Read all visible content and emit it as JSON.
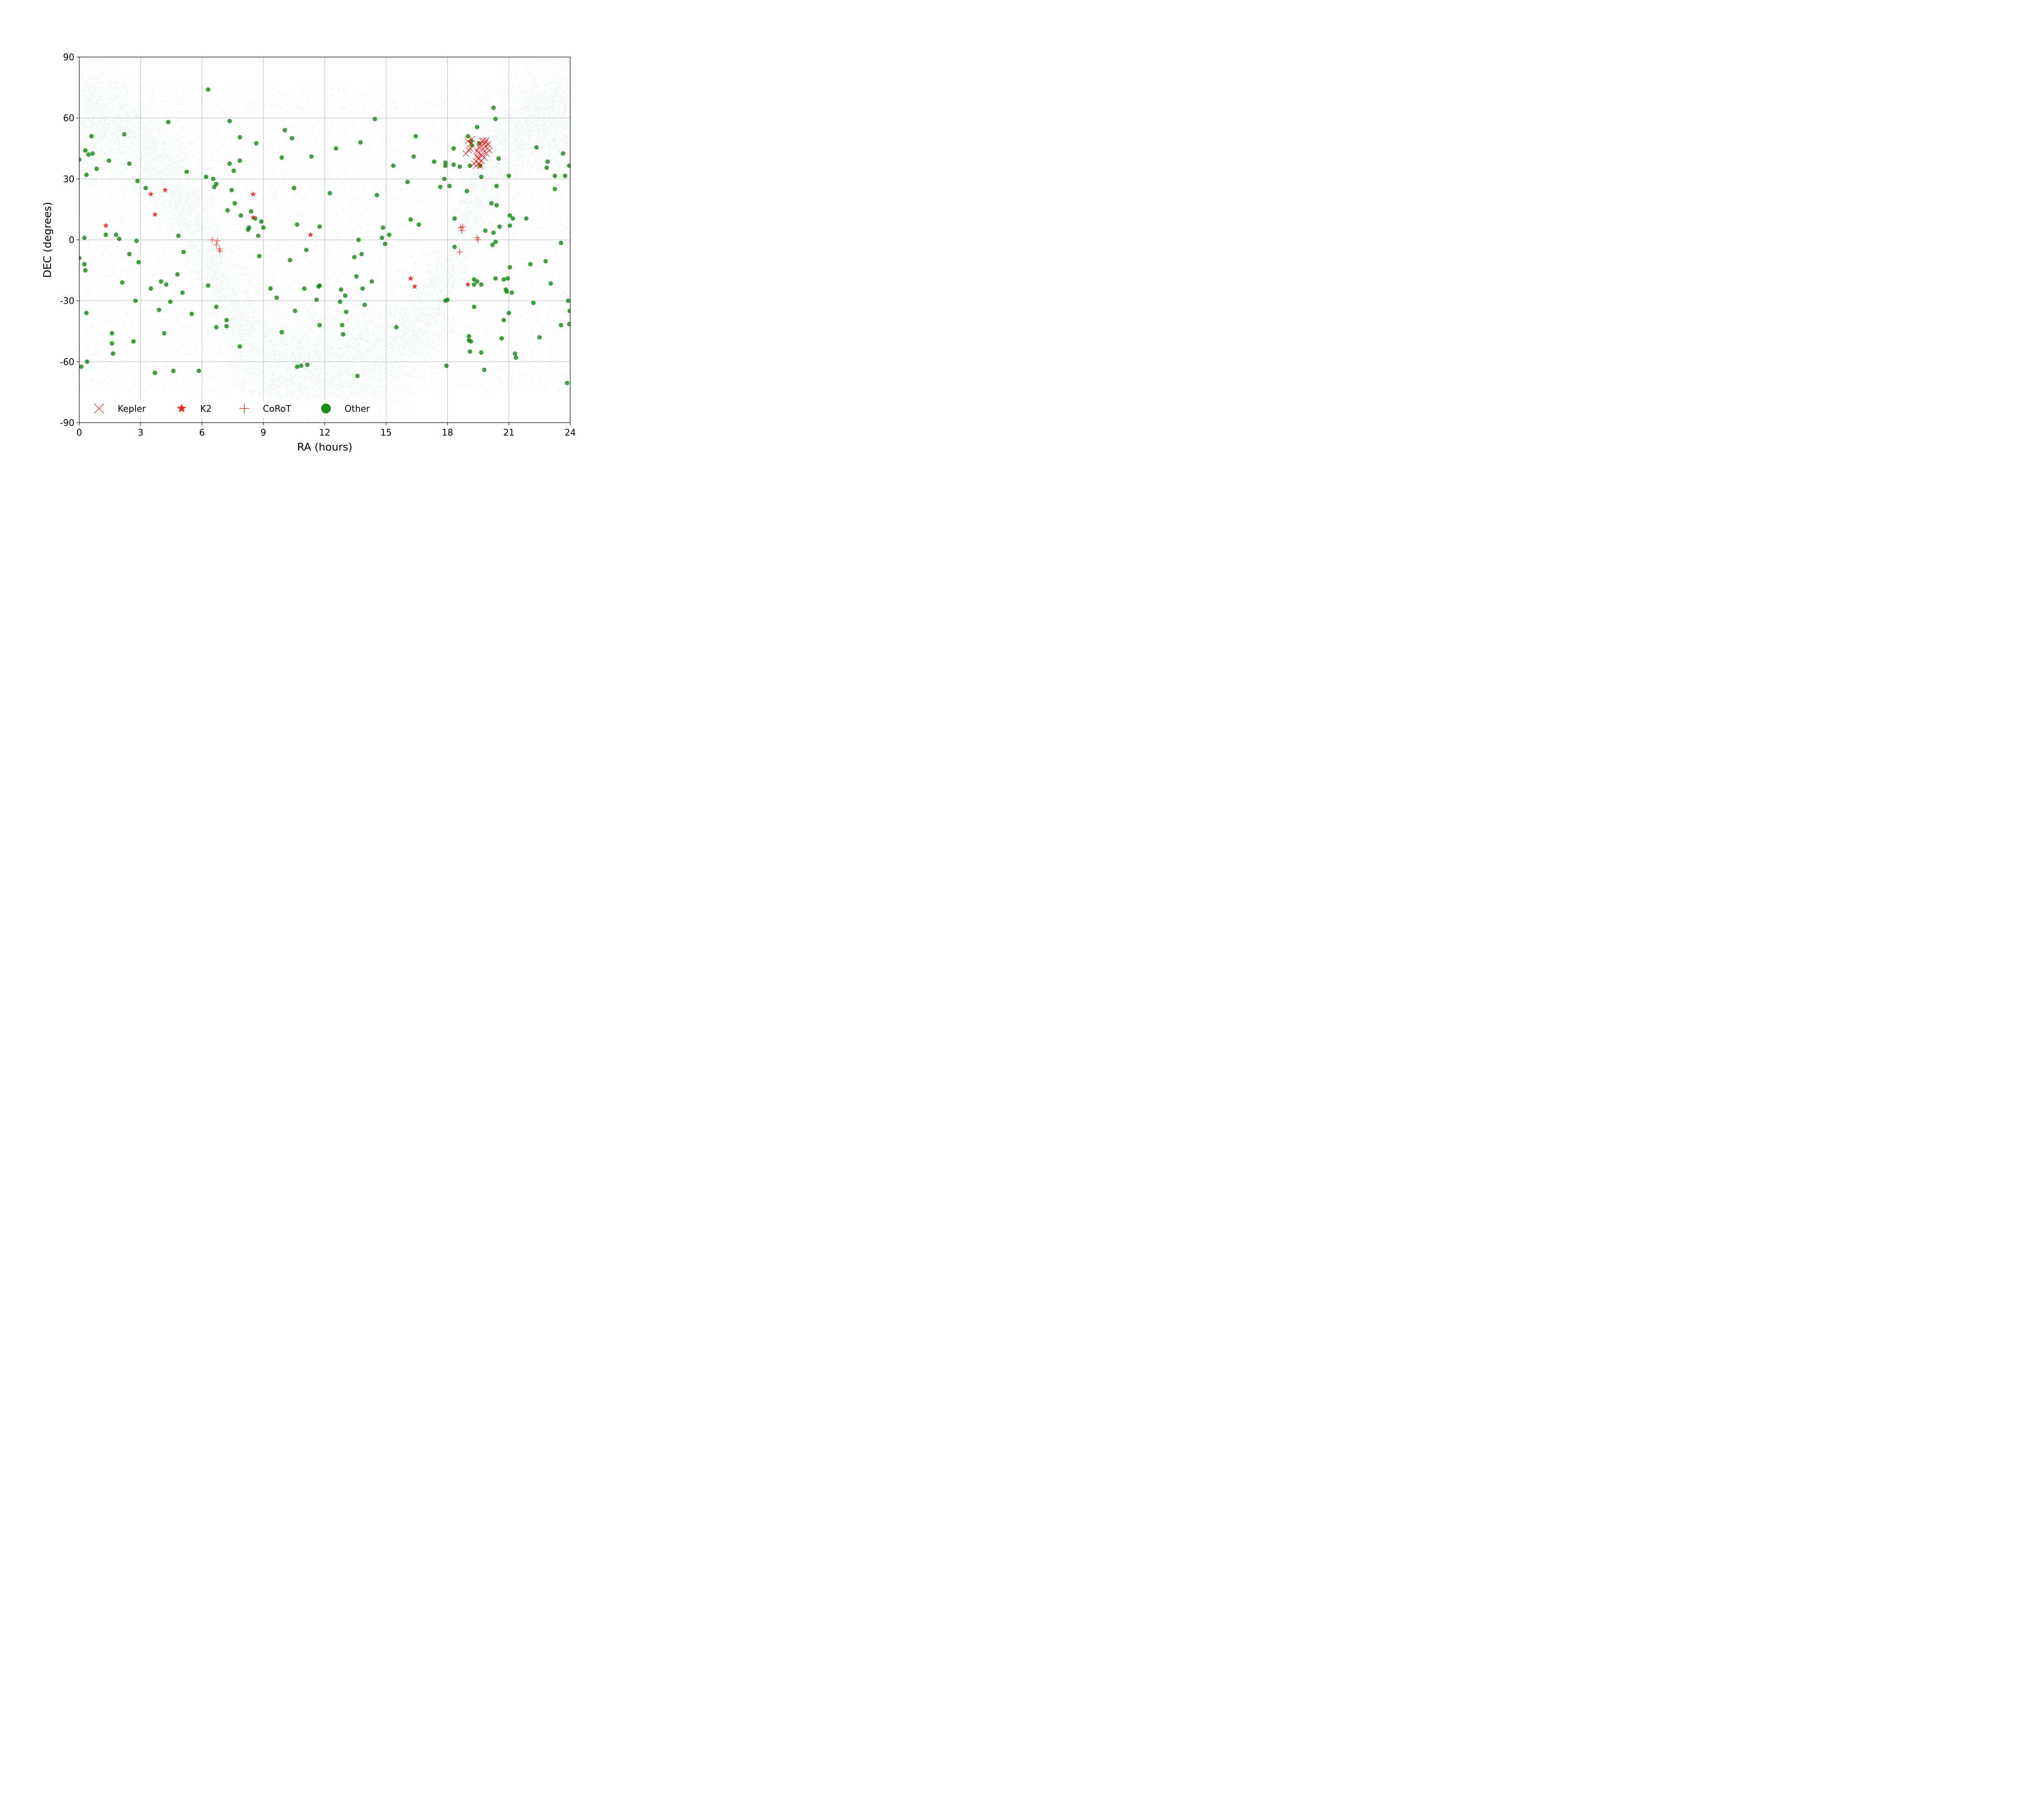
{
  "chart_data": {
    "type": "scatter",
    "title": "",
    "xlabel": "RA (hours)",
    "ylabel": "DEC (degrees)",
    "xlim": [
      0,
      24
    ],
    "ylim": [
      -90,
      90
    ],
    "xticks": [
      0,
      3,
      6,
      9,
      12,
      15,
      18,
      21,
      24
    ],
    "xtick_labels": [
      "0",
      "3",
      "6",
      "9",
      "12",
      "15",
      "18",
      "21",
      "24"
    ],
    "yticks": [
      -90,
      -60,
      -30,
      0,
      30,
      60,
      90
    ],
    "ytick_labels": [
      "-90",
      "-60",
      "-30",
      "0",
      "30",
      "60",
      "90"
    ],
    "grid": true,
    "legend_position": "bottom-left",
    "background": {
      "description_color": "#1f77b4",
      "note": "dense field of background target stars"
    },
    "series": [
      {
        "name": "Kepler",
        "marker": "x",
        "color": "#ff0000",
        "points": [
          [
            18.9,
            42.5
          ],
          [
            19.0,
            48.5
          ],
          [
            19.1,
            45.0
          ],
          [
            19.15,
            47.5
          ],
          [
            19.2,
            49.5
          ],
          [
            19.05,
            44.0
          ],
          [
            19.4,
            38.5
          ],
          [
            19.45,
            41.0
          ],
          [
            19.5,
            43.0
          ],
          [
            19.55,
            45.5
          ],
          [
            19.6,
            47.0
          ],
          [
            19.65,
            42.0
          ],
          [
            19.7,
            48.5
          ],
          [
            19.75,
            44.5
          ],
          [
            19.8,
            47.5
          ],
          [
            19.85,
            46.0
          ],
          [
            19.9,
            49.0
          ],
          [
            19.95,
            45.0
          ],
          [
            20.0,
            47.0
          ],
          [
            19.5,
            40.0
          ],
          [
            19.55,
            37.5
          ],
          [
            19.6,
            36.5
          ],
          [
            19.7,
            41.5
          ],
          [
            19.8,
            40.5
          ],
          [
            19.9,
            42.5
          ],
          [
            19.4,
            36.5
          ],
          [
            19.3,
            37.5
          ],
          [
            19.75,
            49.0
          ],
          [
            19.85,
            48.0
          ],
          [
            20.05,
            44.0
          ],
          [
            19.65,
            39.0
          ],
          [
            19.45,
            44.0
          ]
        ]
      },
      {
        "name": "K2",
        "marker": "star",
        "color": "#ff0000",
        "points": [
          [
            1.3,
            7.0
          ],
          [
            3.5,
            22.5
          ],
          [
            3.7,
            12.5
          ],
          [
            4.2,
            24.5
          ],
          [
            8.5,
            22.5
          ],
          [
            8.5,
            11.0
          ],
          [
            11.3,
            2.5
          ],
          [
            16.2,
            -19.0
          ],
          [
            16.4,
            -23.0
          ],
          [
            19.0,
            -22.0
          ]
        ]
      },
      {
        "name": "CoRoT",
        "marker": "plus",
        "color": "#ff0000",
        "points": [
          [
            6.5,
            0.0
          ],
          [
            6.75,
            -0.5
          ],
          [
            6.7,
            -2.5
          ],
          [
            6.85,
            -4.5
          ],
          [
            6.88,
            -5.5
          ],
          [
            18.6,
            -6.0
          ],
          [
            18.65,
            6.0
          ],
          [
            18.7,
            4.5
          ],
          [
            18.75,
            6.5
          ],
          [
            19.45,
            1.0
          ],
          [
            19.5,
            0.0
          ]
        ]
      },
      {
        "name": "Other",
        "marker": "circle",
        "color": "#008000",
        "points": [
          [
            0.0,
            39.5
          ],
          [
            0.3,
            44.0
          ],
          [
            0.35,
            32.0
          ],
          [
            0.45,
            42.0
          ],
          [
            0.6,
            51.0
          ],
          [
            0.65,
            42.5
          ],
          [
            0.85,
            35.0
          ],
          [
            0.0,
            -9.0
          ],
          [
            0.25,
            1.0
          ],
          [
            0.25,
            -12.0
          ],
          [
            0.3,
            -15.0
          ],
          [
            0.35,
            -36.0
          ],
          [
            0.38,
            -60.0
          ],
          [
            0.1,
            -62.5
          ],
          [
            1.3,
            2.5
          ],
          [
            1.45,
            39.0
          ],
          [
            1.6,
            -46.0
          ],
          [
            1.6,
            -51.0
          ],
          [
            1.65,
            -56.0
          ],
          [
            1.8,
            2.5
          ],
          [
            1.95,
            0.5
          ],
          [
            2.1,
            -21.0
          ],
          [
            2.2,
            52.0
          ],
          [
            2.45,
            37.5
          ],
          [
            2.45,
            -7.0
          ],
          [
            2.65,
            -50.0
          ],
          [
            2.75,
            -30.0
          ],
          [
            2.8,
            -0.5
          ],
          [
            2.85,
            29.0
          ],
          [
            2.9,
            -11.0
          ],
          [
            3.25,
            25.5
          ],
          [
            3.5,
            -24.0
          ],
          [
            3.7,
            -65.5
          ],
          [
            3.9,
            -34.5
          ],
          [
            4.0,
            -20.5
          ],
          [
            4.15,
            -46.0
          ],
          [
            4.25,
            -22.0
          ],
          [
            4.35,
            58.0
          ],
          [
            4.45,
            -30.5
          ],
          [
            4.6,
            -64.5
          ],
          [
            4.8,
            -17.0
          ],
          [
            4.85,
            2.0
          ],
          [
            5.05,
            -26.0
          ],
          [
            5.1,
            -6.0
          ],
          [
            5.25,
            33.5
          ],
          [
            5.5,
            -36.5
          ],
          [
            5.85,
            -64.5
          ],
          [
            6.2,
            31.0
          ],
          [
            6.3,
            74.0
          ],
          [
            6.3,
            -22.5
          ],
          [
            6.55,
            30.0
          ],
          [
            6.6,
            26.0
          ],
          [
            6.7,
            27.5
          ],
          [
            6.7,
            -33.0
          ],
          [
            6.7,
            -43.0
          ],
          [
            7.2,
            -39.5
          ],
          [
            7.2,
            -42.5
          ],
          [
            7.25,
            14.5
          ],
          [
            7.35,
            58.5
          ],
          [
            7.35,
            37.5
          ],
          [
            7.45,
            24.5
          ],
          [
            7.55,
            34.0
          ],
          [
            7.6,
            18.0
          ],
          [
            7.85,
            39.0
          ],
          [
            7.85,
            50.5
          ],
          [
            7.9,
            12.0
          ],
          [
            7.85,
            -52.5
          ],
          [
            8.25,
            5.0
          ],
          [
            8.3,
            6.0
          ],
          [
            8.4,
            14.0
          ],
          [
            8.6,
            10.5
          ],
          [
            8.65,
            47.5
          ],
          [
            8.75,
            2.0
          ],
          [
            8.8,
            -8.0
          ],
          [
            8.9,
            9.0
          ],
          [
            9.0,
            6.0
          ],
          [
            9.35,
            -24.0
          ],
          [
            9.65,
            -28.5
          ],
          [
            9.9,
            40.5
          ],
          [
            10.05,
            54.0
          ],
          [
            9.9,
            -45.5
          ],
          [
            10.3,
            -10.0
          ],
          [
            10.4,
            50.0
          ],
          [
            10.5,
            25.5
          ],
          [
            10.55,
            -35.0
          ],
          [
            10.65,
            7.5
          ],
          [
            10.65,
            -62.5
          ],
          [
            10.85,
            -62.0
          ],
          [
            11.0,
            -24.0
          ],
          [
            11.1,
            -5.0
          ],
          [
            11.15,
            -61.5
          ],
          [
            11.35,
            41.0
          ],
          [
            11.6,
            -29.5
          ],
          [
            11.7,
            -23.0
          ],
          [
            11.75,
            -22.5
          ],
          [
            11.75,
            6.5
          ],
          [
            11.75,
            -42.0
          ],
          [
            12.25,
            23.0
          ],
          [
            12.55,
            45.0
          ],
          [
            12.75,
            -30.5
          ],
          [
            12.8,
            -24.5
          ],
          [
            12.85,
            -42.0
          ],
          [
            12.9,
            -46.5
          ],
          [
            13.0,
            -27.5
          ],
          [
            13.05,
            -35.5
          ],
          [
            13.45,
            -8.5
          ],
          [
            13.55,
            -18.0
          ],
          [
            13.6,
            -67.0
          ],
          [
            13.65,
            0.0
          ],
          [
            13.75,
            48.0
          ],
          [
            13.8,
            -7.0
          ],
          [
            13.85,
            -24.0
          ],
          [
            13.95,
            -32.0
          ],
          [
            14.3,
            -20.5
          ],
          [
            14.45,
            59.5
          ],
          [
            14.55,
            22.0
          ],
          [
            14.8,
            1.0
          ],
          [
            14.85,
            6.0
          ],
          [
            14.95,
            -2.0
          ],
          [
            15.15,
            2.5
          ],
          [
            15.35,
            36.5
          ],
          [
            15.5,
            -43.0
          ],
          [
            16.05,
            28.5
          ],
          [
            16.2,
            10.0
          ],
          [
            16.35,
            41.0
          ],
          [
            16.45,
            51.0
          ],
          [
            16.6,
            7.5
          ],
          [
            17.35,
            38.5
          ],
          [
            17.65,
            26.0
          ],
          [
            17.85,
            30.0
          ],
          [
            17.9,
            36.5
          ],
          [
            17.9,
            38.0
          ],
          [
            17.95,
            -62.0
          ],
          [
            17.9,
            -30.0
          ],
          [
            18.0,
            -29.5
          ],
          [
            18.1,
            26.5
          ],
          [
            18.3,
            45.0
          ],
          [
            18.3,
            37.0
          ],
          [
            18.35,
            10.5
          ],
          [
            18.35,
            -3.5
          ],
          [
            18.6,
            36.0
          ],
          [
            18.95,
            24.0
          ],
          [
            19.0,
            51.0
          ],
          [
            19.05,
            -47.5
          ],
          [
            19.05,
            -49.5
          ],
          [
            19.1,
            -55.0
          ],
          [
            19.15,
            -50.0
          ],
          [
            19.1,
            36.5
          ],
          [
            19.15,
            48.5
          ],
          [
            19.2,
            46.5
          ],
          [
            19.3,
            -33.0
          ],
          [
            19.3,
            -22.0
          ],
          [
            19.3,
            -19.5
          ],
          [
            19.45,
            -20.5
          ],
          [
            19.45,
            55.5
          ],
          [
            19.55,
            47.5
          ],
          [
            19.6,
            36.5
          ],
          [
            19.65,
            31.0
          ],
          [
            19.65,
            -55.5
          ],
          [
            19.65,
            -22.0
          ],
          [
            19.8,
            -64.0
          ],
          [
            19.85,
            4.5
          ],
          [
            20.15,
            18.0
          ],
          [
            20.2,
            -2.5
          ],
          [
            20.25,
            3.5
          ],
          [
            20.25,
            65.0
          ],
          [
            20.35,
            59.5
          ],
          [
            20.35,
            -19.0
          ],
          [
            20.35,
            -1.0
          ],
          [
            20.4,
            26.5
          ],
          [
            20.4,
            17.0
          ],
          [
            20.5,
            40.0
          ],
          [
            20.55,
            6.5
          ],
          [
            20.65,
            -48.5
          ],
          [
            20.75,
            -39.5
          ],
          [
            20.75,
            -19.5
          ],
          [
            20.85,
            -24.5
          ],
          [
            20.9,
            -25.5
          ],
          [
            20.95,
            -19.0
          ],
          [
            21.0,
            31.5
          ],
          [
            21.0,
            -36.0
          ],
          [
            21.05,
            12.0
          ],
          [
            21.05,
            7.0
          ],
          [
            21.05,
            -13.5
          ],
          [
            21.15,
            -26.0
          ],
          [
            21.2,
            10.5
          ],
          [
            21.3,
            -56.0
          ],
          [
            21.35,
            -58.0
          ],
          [
            21.85,
            10.5
          ],
          [
            22.05,
            -12.0
          ],
          [
            22.2,
            -31.0
          ],
          [
            22.35,
            45.5
          ],
          [
            22.5,
            -48.0
          ],
          [
            22.8,
            -10.5
          ],
          [
            22.85,
            35.5
          ],
          [
            22.9,
            38.5
          ],
          [
            23.05,
            -21.5
          ],
          [
            23.25,
            31.5
          ],
          [
            23.25,
            25.0
          ],
          [
            23.55,
            -1.5
          ],
          [
            23.55,
            -42.0
          ],
          [
            23.65,
            42.5
          ],
          [
            23.75,
            31.5
          ],
          [
            23.85,
            -70.5
          ],
          [
            23.9,
            -30.0
          ],
          [
            23.95,
            36.5
          ],
          [
            23.95,
            -41.5
          ],
          [
            23.98,
            -35.0
          ]
        ]
      }
    ]
  }
}
